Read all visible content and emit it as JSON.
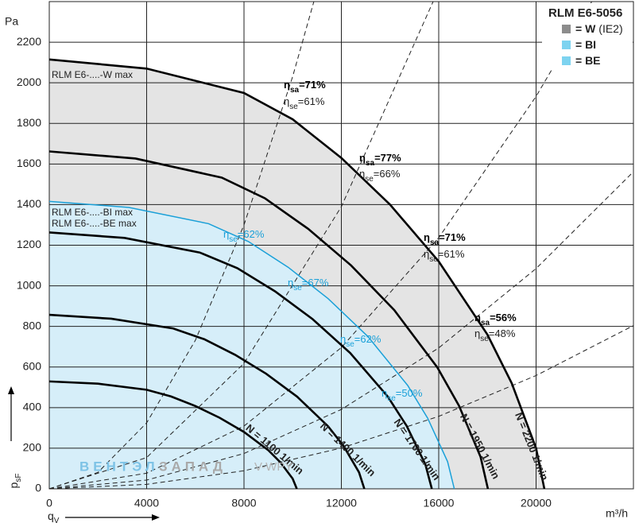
{
  "chart_data": {
    "type": "line",
    "title": "RLM E6-5056",
    "y_unit": "Pa",
    "x_unit": "m³/h",
    "y_label": {
      "main": "p",
      "sub": "sF"
    },
    "x_label": {
      "main": "q",
      "sub": "V"
    },
    "xlim": [
      0,
      24000
    ],
    "ylim": [
      0,
      2400
    ],
    "xticks": [
      0,
      4000,
      8000,
      12000,
      16000,
      20000
    ],
    "yticks": [
      0,
      200,
      400,
      600,
      800,
      1000,
      1200,
      1400,
      1600,
      1800,
      2000,
      2200
    ],
    "grid": true,
    "legend": [
      {
        "label": "= W",
        "note": "(IE2)",
        "color": "#8c8c8c"
      },
      {
        "label": "= BI",
        "color": "#7dd3f0"
      },
      {
        "label": "= BE",
        "color": "#7dd3f0"
      }
    ],
    "areas": [
      {
        "labels": [
          "RLM E6-....-W max"
        ],
        "color": "#e4e4e4",
        "line_color": "#000000",
        "label_color": "#222222",
        "x": [
          0,
          4000,
          8000,
          10000,
          12000,
          14000,
          16000,
          18000,
          19000,
          20000,
          20340
        ],
        "values": [
          2115,
          2070,
          1950,
          1820,
          1630,
          1400,
          1120,
          760,
          520,
          200,
          0
        ]
      },
      {
        "labels": [
          "RLM E6-....-BI max",
          "RLM E6-....-BE max"
        ],
        "color": "#d6eef9",
        "line_color": "#1aa0d8",
        "label_color": "#1aa0d8",
        "x": [
          0,
          3273,
          6545,
          8182,
          9818,
          11455,
          13091,
          14727,
          15545,
          16364,
          16640
        ],
        "values": [
          1416,
          1386,
          1306,
          1218,
          1091,
          937,
          750,
          509,
          348,
          134,
          0
        ]
      }
    ],
    "series": [
      {
        "name": "N = 2200 1/min",
        "color": "#000000",
        "x": [
          0,
          4000,
          8000,
          10000,
          12000,
          14000,
          16000,
          18000,
          19000,
          20000,
          20340
        ],
        "values": [
          2115,
          2070,
          1950,
          1820,
          1630,
          1400,
          1120,
          760,
          520,
          200,
          0
        ]
      },
      {
        "name": "N = 1950 1/min",
        "color": "#000000",
        "x": [
          0,
          3544,
          7088,
          8860,
          10632,
          12404,
          14176,
          15948,
          16834,
          17720,
          18021
        ],
        "values": [
          1662,
          1627,
          1533,
          1431,
          1281,
          1100,
          880,
          597,
          409,
          157,
          0
        ]
      },
      {
        "name": "N = 1700 1/min",
        "color": "#000000",
        "x": [
          0,
          3091,
          6182,
          7727,
          9273,
          10818,
          12364,
          13909,
          14682,
          15455,
          15717
        ],
        "values": [
          1263,
          1236,
          1164,
          1087,
          973,
          836,
          669,
          454,
          310,
          119,
          0
        ]
      },
      {
        "name": "N = 1400 1/min",
        "color": "#000000",
        "x": [
          0,
          2545,
          5091,
          6364,
          7636,
          8909,
          10182,
          11455,
          12091,
          12727,
          12944
        ],
        "values": [
          857,
          838,
          790,
          737,
          660,
          567,
          454,
          308,
          211,
          81,
          0
        ]
      },
      {
        "name": "N = 1100 1/min",
        "color": "#000000",
        "x": [
          0,
          2000,
          4000,
          5000,
          6000,
          7000,
          8000,
          9000,
          9500,
          10000,
          10170
        ],
        "values": [
          529,
          518,
          488,
          455,
          408,
          350,
          280,
          190,
          130,
          50,
          0
        ]
      }
    ],
    "system_curves": [
      {
        "x": [
          0,
          2000,
          4000,
          6000,
          8000,
          10000,
          10870
        ],
        "values": [
          0,
          81,
          325,
          731,
          1300,
          2031,
          2400
        ]
      },
      {
        "x": [
          0,
          4000,
          8000,
          12000,
          15770
        ],
        "values": [
          0,
          154,
          618,
          1390,
          2400
        ]
      },
      {
        "x": [
          0,
          4000,
          8000,
          12000,
          16000,
          20000,
          22290
        ],
        "values": [
          0,
          77,
          309,
          696,
          1237,
          1933,
          2400
        ]
      },
      {
        "x": [
          0,
          4000,
          8000,
          12000,
          16000,
          20000,
          24000
        ],
        "values": [
          0,
          43,
          174,
          391,
          694,
          1085,
          1562
        ]
      },
      {
        "x": [
          0,
          4000,
          8000,
          12000,
          16000,
          20000,
          24000
        ],
        "values": [
          0,
          22,
          89,
          201,
          357,
          558,
          804
        ]
      }
    ],
    "efficiency_labels": [
      {
        "symbol": "η",
        "sub": "sa",
        "text": "=71%",
        "color": "#000000"
      },
      {
        "symbol": "η",
        "sub": "se",
        "text": "=61%",
        "color": "#222222"
      },
      {
        "symbol": "η",
        "sub": "sa",
        "text": "=77%",
        "color": "#000000"
      },
      {
        "symbol": "η",
        "sub": "se",
        "text": "=66%",
        "color": "#222222"
      },
      {
        "symbol": "η",
        "sub": "sa",
        "text": "=71%",
        "color": "#000000"
      },
      {
        "symbol": "η",
        "sub": "se",
        "text": "=61%",
        "color": "#222222"
      },
      {
        "symbol": "η",
        "sub": "sa",
        "text": "=56%",
        "color": "#000000"
      },
      {
        "symbol": "η",
        "sub": "se",
        "text": "=48%",
        "color": "#222222"
      },
      {
        "symbol": "η",
        "sub": "se",
        "text": "=62%",
        "color": "#1aa0d8"
      },
      {
        "symbol": "η",
        "sub": "se",
        "text": "=67%",
        "color": "#1aa0d8"
      },
      {
        "symbol": "η",
        "sub": "se",
        "text": "=62%",
        "color": "#1aa0d8"
      },
      {
        "symbol": "η",
        "sub": "se",
        "text": "=50%",
        "color": "#1aa0d8"
      }
    ],
    "watermark": {
      "part1": "ВЕНТЭЛ",
      "part2": "ЗАПАД",
      "part3": "V-WPY"
    }
  }
}
